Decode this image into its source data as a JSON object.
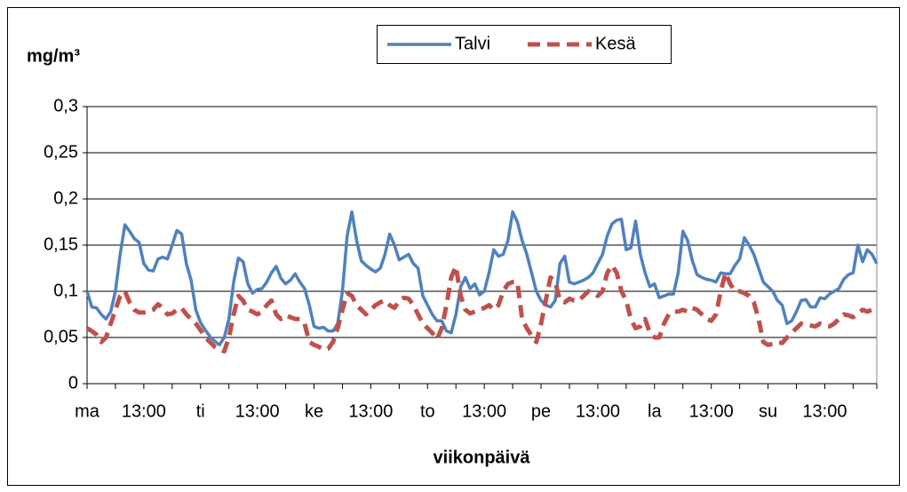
{
  "chart_data": {
    "type": "line",
    "y_label": "mg/m³",
    "x_label": "viikonpäivä",
    "legend": "top",
    "grid": true,
    "ylim": [
      0,
      0.3
    ],
    "yticks": [
      0,
      {
        "value": 0.05,
        "label": "0,05"
      },
      {
        "value": 0.1,
        "label": "0,1"
      },
      {
        "value": 0.15,
        "label": "0,15"
      },
      {
        "value": 0.2,
        "label": "0,2"
      },
      {
        "value": 0.25,
        "label": "0,25"
      },
      {
        "value": 0.3,
        "label": "0,3"
      }
    ],
    "categories": [
      "ma",
      null,
      null,
      null,
      null,
      null,
      null,
      null,
      null,
      null,
      null,
      null,
      "13:00",
      null,
      null,
      null,
      null,
      null,
      null,
      null,
      null,
      null,
      null,
      null,
      "ti",
      null,
      null,
      null,
      null,
      null,
      null,
      null,
      null,
      null,
      null,
      null,
      "13:00",
      null,
      null,
      null,
      null,
      null,
      null,
      null,
      null,
      null,
      null,
      null,
      "ke",
      null,
      null,
      null,
      null,
      null,
      null,
      null,
      null,
      null,
      null,
      null,
      "13:00",
      null,
      null,
      null,
      null,
      null,
      null,
      null,
      null,
      null,
      null,
      null,
      "to",
      null,
      null,
      null,
      null,
      null,
      null,
      null,
      null,
      null,
      null,
      null,
      "13:00",
      null,
      null,
      null,
      null,
      null,
      null,
      null,
      null,
      null,
      null,
      null,
      "pe",
      null,
      null,
      null,
      null,
      null,
      null,
      null,
      null,
      null,
      null,
      null,
      "13:00",
      null,
      null,
      null,
      null,
      null,
      null,
      null,
      null,
      null,
      null,
      null,
      "la",
      null,
      null,
      null,
      null,
      null,
      null,
      null,
      null,
      null,
      null,
      null,
      "13:00",
      null,
      null,
      null,
      null,
      null,
      null,
      null,
      null,
      null,
      null,
      null,
      "su",
      null,
      null,
      null,
      null,
      null,
      null,
      null,
      null,
      null,
      null,
      null,
      "13:00",
      null,
      null,
      null,
      null,
      null,
      null,
      null,
      null,
      null,
      null,
      null
    ],
    "series": [
      {
        "name": "Talvi",
        "color": "#4f81bd",
        "dash": false,
        "values": [
          0.1,
          0.083,
          0.082,
          0.075,
          0.07,
          0.078,
          0.1,
          0.14,
          0.172,
          0.165,
          0.157,
          0.153,
          0.13,
          0.123,
          0.122,
          0.135,
          0.137,
          0.135,
          0.15,
          0.166,
          0.162,
          0.13,
          0.112,
          0.08,
          0.066,
          0.058,
          0.051,
          0.046,
          0.042,
          0.05,
          0.07,
          0.11,
          0.136,
          0.132,
          0.108,
          0.098,
          0.102,
          0.103,
          0.11,
          0.12,
          0.127,
          0.114,
          0.108,
          0.112,
          0.119,
          0.11,
          0.103,
          0.085,
          0.062,
          0.06,
          0.061,
          0.057,
          0.057,
          0.065,
          0.1,
          0.16,
          0.186,
          0.155,
          0.133,
          0.128,
          0.124,
          0.121,
          0.125,
          0.14,
          0.162,
          0.15,
          0.134,
          0.137,
          0.14,
          0.13,
          0.125,
          0.095,
          0.085,
          0.075,
          0.068,
          0.068,
          0.057,
          0.055,
          0.075,
          0.105,
          0.115,
          0.103,
          0.108,
          0.096,
          0.1,
          0.12,
          0.145,
          0.138,
          0.14,
          0.155,
          0.186,
          0.175,
          0.155,
          0.14,
          0.12,
          0.1,
          0.09,
          0.085,
          0.083,
          0.09,
          0.13,
          0.138,
          0.11,
          0.108,
          0.11,
          0.112,
          0.115,
          0.12,
          0.13,
          0.14,
          0.16,
          0.173,
          0.177,
          0.178,
          0.145,
          0.147,
          0.176,
          0.14,
          0.12,
          0.105,
          0.108,
          0.093,
          0.095,
          0.097,
          0.097,
          0.12,
          0.165,
          0.155,
          0.133,
          0.118,
          0.115,
          0.113,
          0.112,
          0.11,
          0.12,
          0.119,
          0.119,
          0.128,
          0.135,
          0.158,
          0.15,
          0.14,
          0.125,
          0.11,
          0.105,
          0.1,
          0.09,
          0.085,
          0.065,
          0.068,
          0.078,
          0.09,
          0.091,
          0.083,
          0.083,
          0.093,
          0.092,
          0.097,
          0.1,
          0.103,
          0.113,
          0.118,
          0.12,
          0.15,
          0.132,
          0.145,
          0.14,
          0.13
        ]
      },
      {
        "name": "Kesä",
        "color": "#c0504d",
        "dash": true,
        "values": [
          0.06,
          0.057,
          0.053,
          0.045,
          0.05,
          0.065,
          0.08,
          0.095,
          0.1,
          0.088,
          0.08,
          0.077,
          0.077,
          0.078,
          0.08,
          0.086,
          0.082,
          0.075,
          0.076,
          0.08,
          0.082,
          0.075,
          0.07,
          0.065,
          0.058,
          0.05,
          0.045,
          0.04,
          0.037,
          0.035,
          0.05,
          0.075,
          0.095,
          0.09,
          0.08,
          0.078,
          0.075,
          0.078,
          0.085,
          0.09,
          0.075,
          0.07,
          0.074,
          0.072,
          0.07,
          0.07,
          0.065,
          0.045,
          0.042,
          0.04,
          0.037,
          0.038,
          0.045,
          0.06,
          0.08,
          0.098,
          0.095,
          0.085,
          0.08,
          0.075,
          0.08,
          0.085,
          0.088,
          0.09,
          0.085,
          0.082,
          0.09,
          0.093,
          0.092,
          0.085,
          0.075,
          0.065,
          0.06,
          0.055,
          0.048,
          0.06,
          0.085,
          0.115,
          0.127,
          0.095,
          0.08,
          0.076,
          0.078,
          0.08,
          0.082,
          0.085,
          0.08,
          0.085,
          0.1,
          0.108,
          0.11,
          0.11,
          0.07,
          0.06,
          0.052,
          0.045,
          0.065,
          0.09,
          0.115,
          0.11,
          0.09,
          0.088,
          0.092,
          0.09,
          0.09,
          0.095,
          0.1,
          0.098,
          0.095,
          0.1,
          0.12,
          0.128,
          0.12,
          0.1,
          0.09,
          0.07,
          0.06,
          0.062,
          0.07,
          0.055,
          0.05,
          0.05,
          0.065,
          0.075,
          0.078,
          0.078,
          0.08,
          0.078,
          0.082,
          0.08,
          0.075,
          0.07,
          0.068,
          0.075,
          0.1,
          0.12,
          0.108,
          0.1,
          0.1,
          0.098,
          0.095,
          0.088,
          0.07,
          0.045,
          0.042,
          0.043,
          0.045,
          0.044,
          0.05,
          0.055,
          0.06,
          0.065,
          0.064,
          0.063,
          0.062,
          0.065,
          0.063,
          0.062,
          0.065,
          0.07,
          0.075,
          0.074,
          0.072,
          0.076,
          0.08,
          0.078,
          0.08,
          0.082
        ]
      }
    ]
  }
}
